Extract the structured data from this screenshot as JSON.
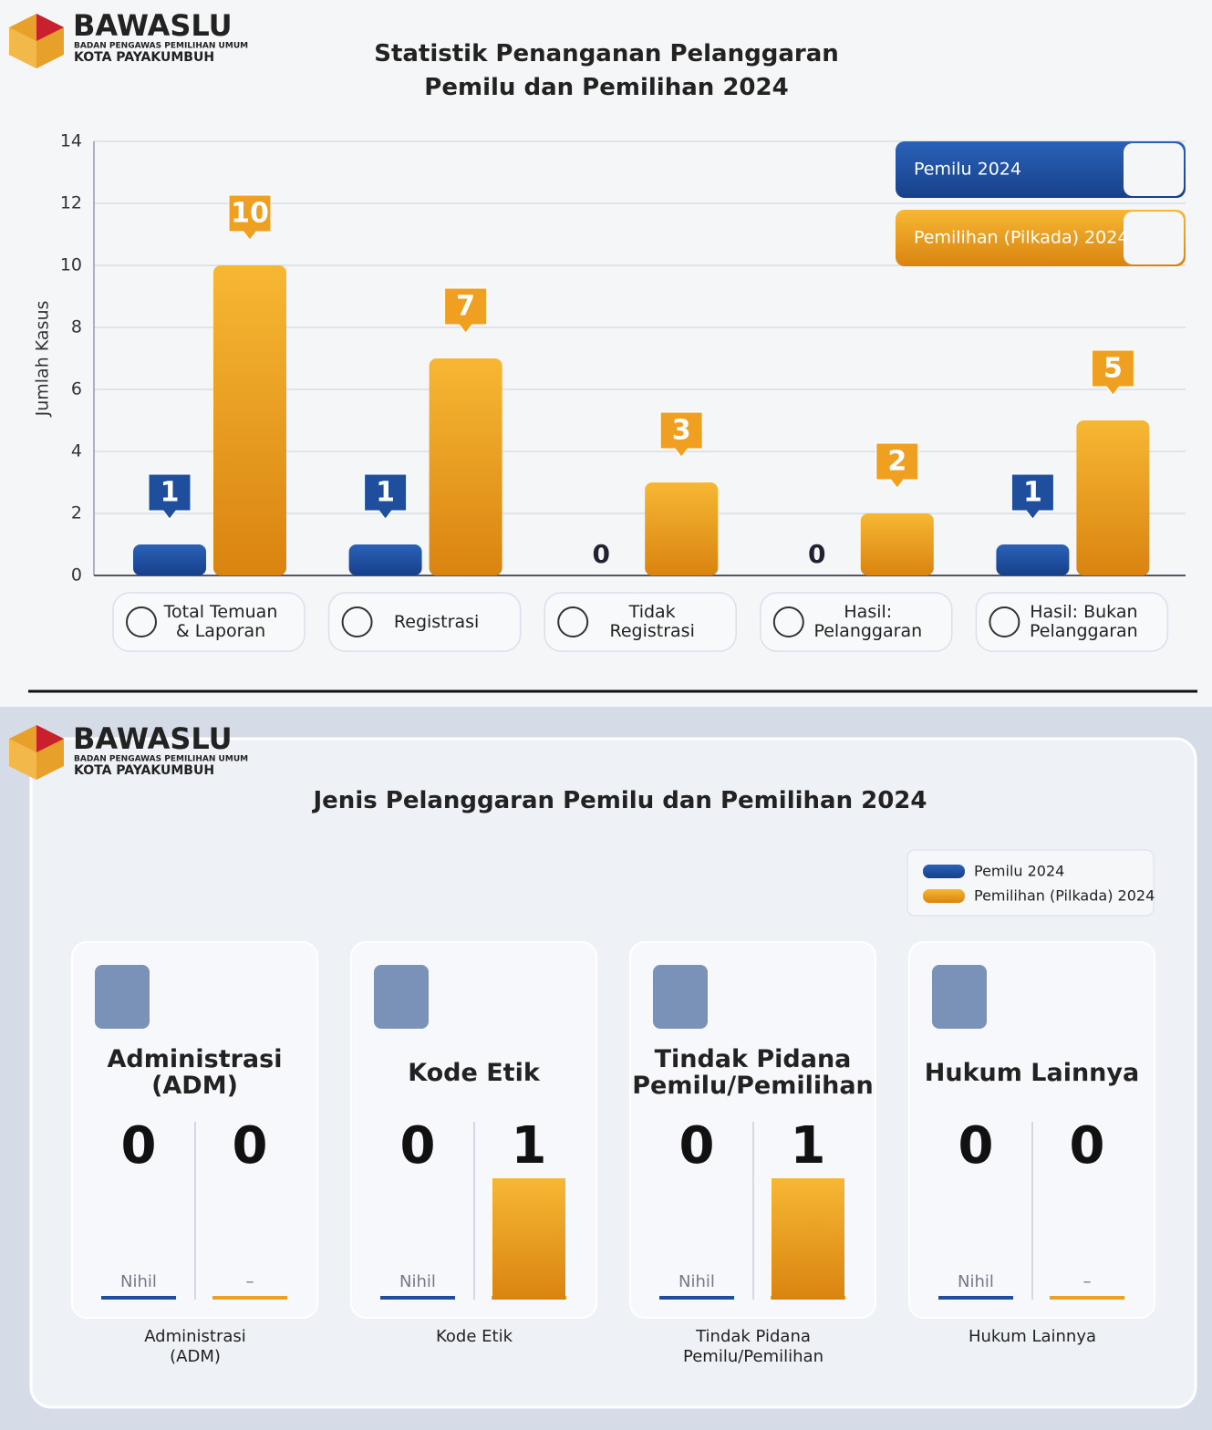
{
  "logo": {
    "name": "BAWASLU",
    "subtitle": "BADAN PENGAWAS PEMILIHAN UMUM",
    "region": "KOTA PAYAKUMBUH"
  },
  "chart_data": [
    {
      "type": "bar",
      "title": "Statistik Penanganan Pelanggaran Pemilu dan Pemilihan 2024",
      "ylabel": "Jumlah Kasus",
      "categories": [
        "Total Temuan & Laporan",
        "Registrasi",
        "Tidak Registrasi",
        "Hasil: Pelanggaran",
        "Hasil: Bukan Pelanggaran"
      ],
      "series": [
        {
          "name": "Pemilu 2024",
          "color": "#1e4e9c",
          "values": [
            1,
            1,
            0,
            0,
            1
          ]
        },
        {
          "name": "Pemilihan (Pilkada) 2024",
          "color": "#f0a020",
          "values": [
            10,
            7,
            3,
            2,
            5
          ]
        }
      ],
      "ylim": [
        0,
        14
      ],
      "yticks": [
        0,
        2,
        4,
        6,
        8,
        10,
        12,
        14
      ],
      "grid": true,
      "legend": "top-right"
    },
    {
      "type": "cards",
      "title": "Jenis Pelanggaran Pemilu dan Pemilihan 2024",
      "categories": [
        "Administrasi (ADM)",
        "Kode Etik",
        "Tindak Pidana Pemilu/Pemilihan",
        "Hukum Lainnya"
      ],
      "series": [
        {
          "name": "Pemilu 2024",
          "color": "#1e4e9c",
          "values": [
            0,
            0,
            0,
            0
          ],
          "zero_label": "Nihil"
        },
        {
          "name": "Pemilihan (Pilkada) 2024",
          "color": "#eea020",
          "values": [
            0,
            1,
            1,
            0
          ],
          "zero_label": "–"
        }
      ],
      "legend": "top-right"
    }
  ]
}
